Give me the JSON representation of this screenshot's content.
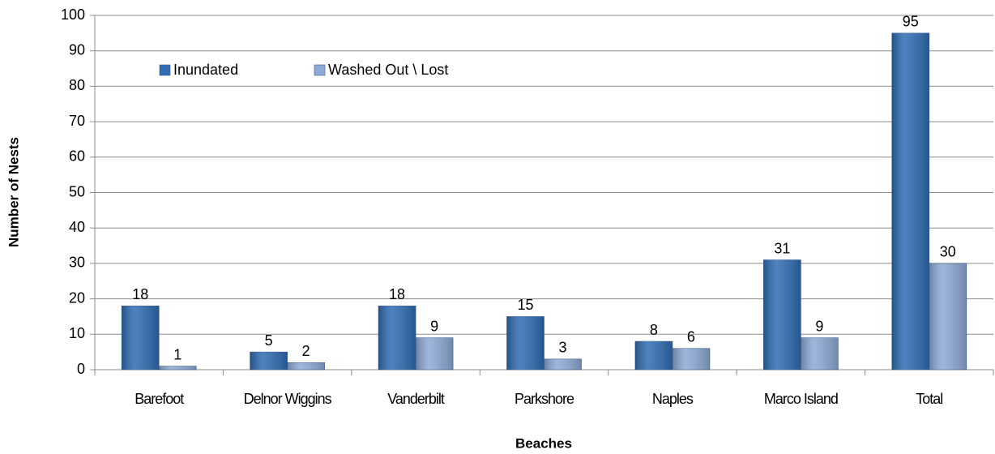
{
  "chart_data": {
    "type": "bar",
    "x_label": "Beaches",
    "y_label": "Number of Nests",
    "categories": [
      "Barefoot",
      "Delnor Wiggins",
      "Vanderbilt",
      "Parkshore",
      "Naples",
      "Marco Island",
      "Total"
    ],
    "series": [
      {
        "name": "Inundated",
        "color": "#2f6cb3",
        "values": [
          18,
          5,
          18,
          15,
          8,
          31,
          95
        ]
      },
      {
        "name": "Washed Out \\ Lost",
        "color": "#8ea9d6",
        "values": [
          1,
          2,
          9,
          3,
          6,
          9,
          30
        ]
      }
    ],
    "ylim": [
      0,
      100
    ],
    "yticks": [
      0,
      10,
      20,
      30,
      40,
      50,
      60,
      70,
      80,
      90,
      100
    ],
    "grid": true,
    "legend": "top-left"
  }
}
